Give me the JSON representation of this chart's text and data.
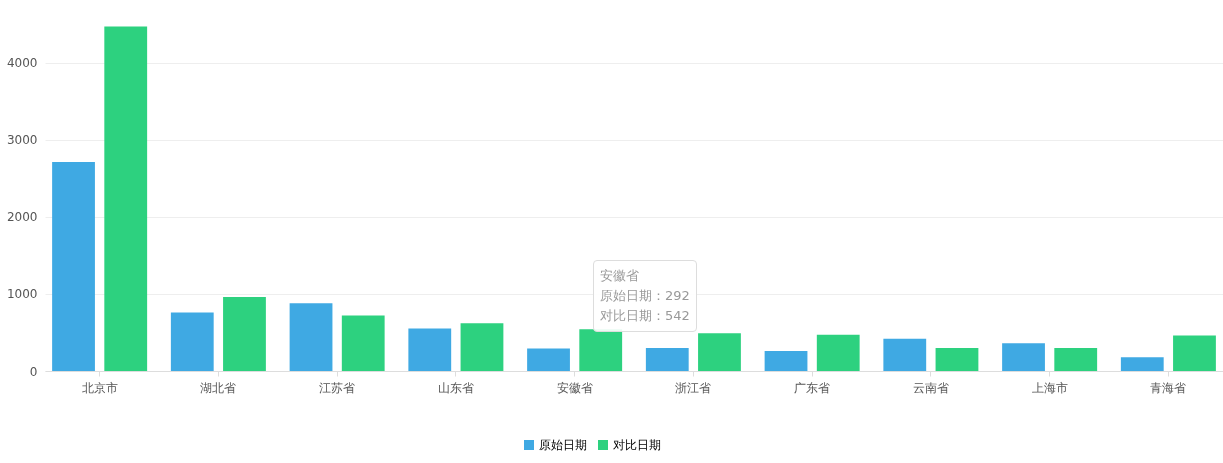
{
  "chart_data": {
    "type": "bar",
    "categories": [
      "北京市",
      "湖北省",
      "江苏省",
      "山东省",
      "安徽省",
      "浙江省",
      "广东省",
      "云南省",
      "上海市",
      "青海省"
    ],
    "series": [
      {
        "name": "原始日期",
        "color": "#3fa9e3",
        "values": [
          2710,
          760,
          880,
          550,
          292,
          300,
          260,
          420,
          360,
          180
        ]
      },
      {
        "name": "对比日期",
        "color": "#2dd17f",
        "values": [
          4470,
          960,
          720,
          620,
          542,
          490,
          470,
          300,
          300,
          460
        ]
      }
    ],
    "ylim": [
      0,
      4800
    ],
    "yticks": [
      0,
      1000,
      2000,
      3000,
      4000
    ],
    "grid": "y",
    "legend": "bottom",
    "annotations": [
      "安徽省",
      "原始日期：292",
      "对比日期：542"
    ]
  }
}
